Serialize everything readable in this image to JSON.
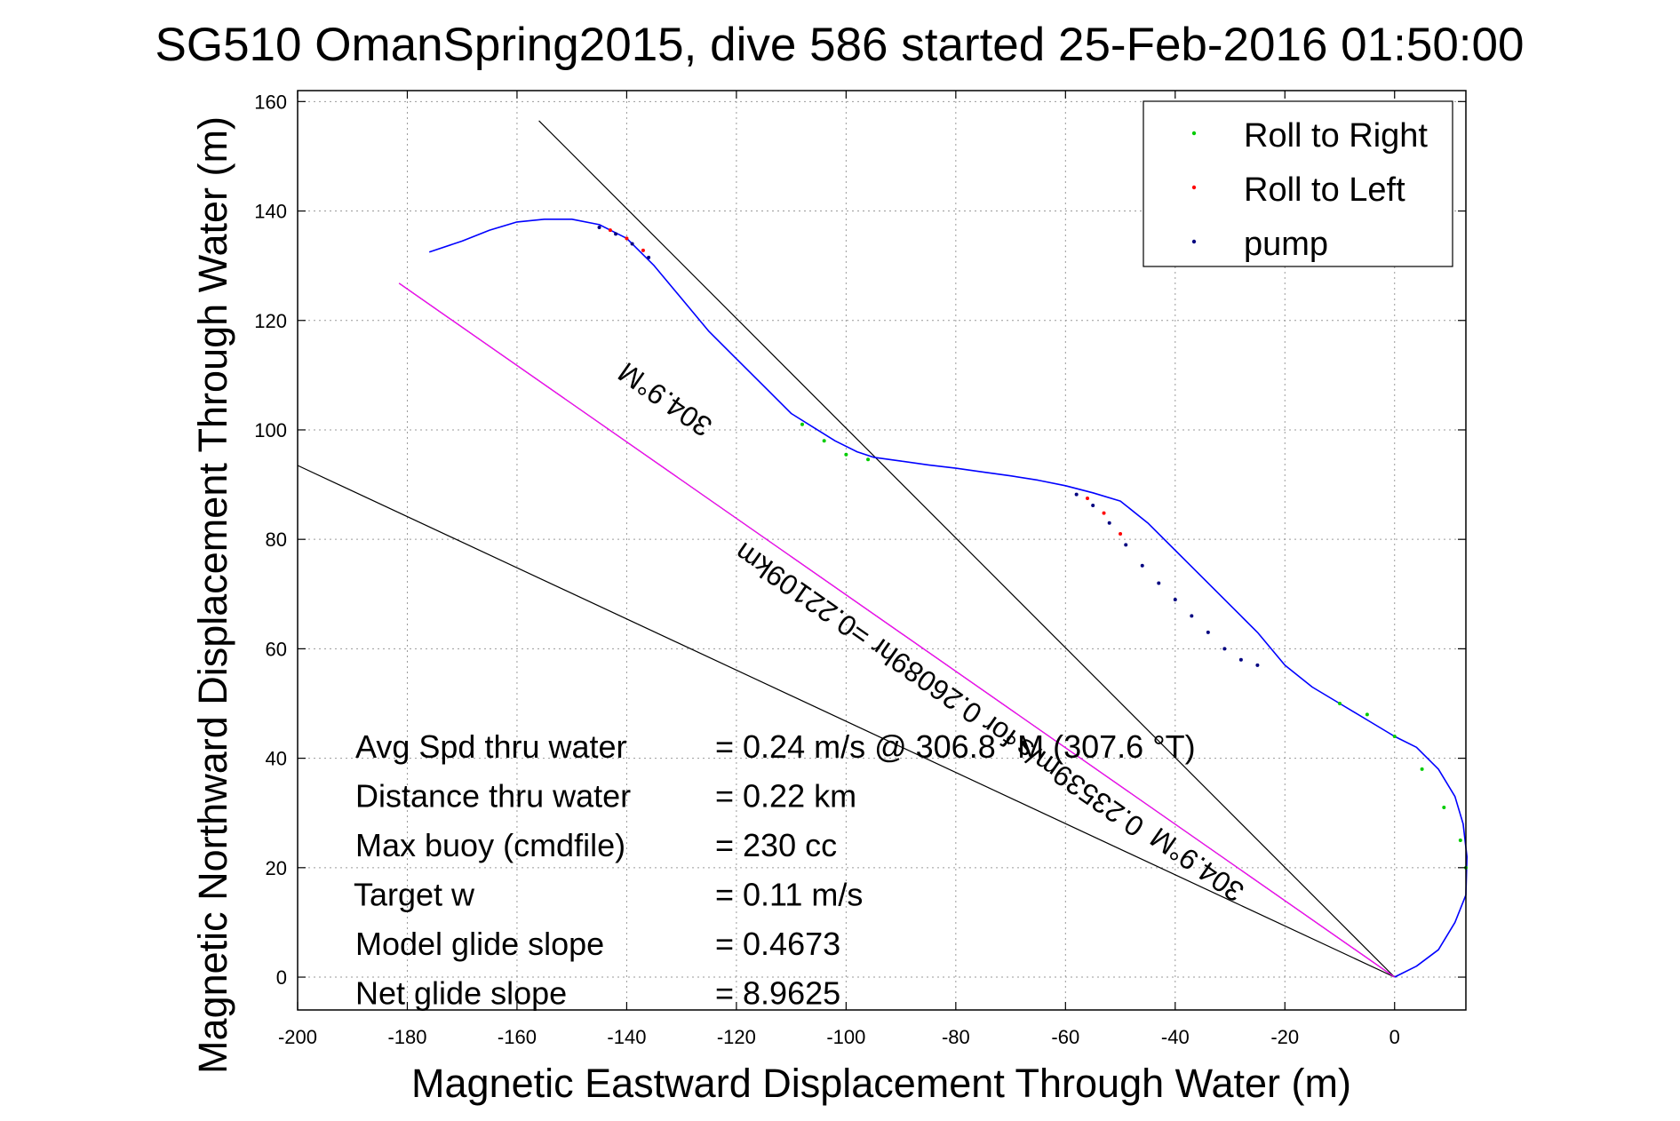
{
  "chart_data": {
    "type": "line",
    "title": "SG510 OmanSpring2015, dive 586 started 25-Feb-2016 01:50:00",
    "xlabel": "Magnetic Eastward Displacement Through Water (m)",
    "ylabel": "Magnetic Northward Displacement Through Water (m)",
    "xlim": [
      -200,
      13
    ],
    "ylim": [
      -6,
      162
    ],
    "xticks": [
      -200,
      -180,
      -160,
      -140,
      -120,
      -100,
      -80,
      -60,
      -40,
      -20,
      0
    ],
    "yticks": [
      0,
      20,
      40,
      60,
      80,
      100,
      120,
      140,
      160
    ],
    "grid": true,
    "legend": {
      "placement": "top-right",
      "entries": [
        {
          "label": "Roll to Right",
          "color": "#00cc00"
        },
        {
          "label": "Roll to Left",
          "color": "#ff0000"
        },
        {
          "label": "pump",
          "color": "#000080"
        }
      ]
    },
    "series": [
      {
        "role": "track",
        "color": "#0000ff",
        "x": [
          0,
          4,
          8,
          11,
          13,
          13.2,
          12.5,
          11,
          8,
          4,
          0,
          -5,
          -10,
          -15,
          -20,
          -25,
          -30,
          -35,
          -40,
          -45,
          -50,
          -55,
          -60,
          -65,
          -70,
          -75,
          -80,
          -85,
          -90,
          -95,
          -98,
          -102,
          -106,
          -110,
          -115,
          -120,
          -125,
          -130,
          -135,
          -140,
          -145,
          -150,
          -155,
          -160,
          -165,
          -170,
          -176
        ],
        "y": [
          0,
          2,
          5,
          10,
          15,
          22,
          28,
          33,
          38,
          42,
          44,
          47,
          50,
          53,
          57,
          63,
          68,
          73,
          78,
          83,
          87,
          88.5,
          89.8,
          90.8,
          91.6,
          92.3,
          93,
          93.6,
          94.3,
          95,
          96,
          98,
          100.5,
          103,
          108,
          113,
          118,
          124,
          130,
          135,
          137.5,
          138.5,
          138.5,
          138,
          136.5,
          134.5,
          132.5
        ]
      },
      {
        "role": "roll-right",
        "color": "#00cc00",
        "x": [
          -108,
          -104,
          -100,
          -96,
          -10,
          -5,
          0,
          5,
          9,
          12,
          13
        ],
        "y": [
          101,
          98,
          95.5,
          94.6,
          50,
          48,
          44,
          38,
          31,
          25,
          20
        ]
      },
      {
        "role": "roll-left",
        "color": "#ff0000",
        "x": [
          -143,
          -140,
          -137,
          -56,
          -53,
          -50
        ],
        "y": [
          136.5,
          135,
          132.8,
          87.5,
          84.8,
          81
        ]
      },
      {
        "role": "pump",
        "color": "#000080",
        "x": [
          -145,
          -142,
          -139,
          -136,
          -58,
          -55,
          -52,
          -49,
          -46,
          -43,
          -40,
          -37,
          -34,
          -31,
          -28,
          -25
        ],
        "y": [
          137,
          135.8,
          134,
          131.5,
          88.2,
          86.2,
          83,
          79,
          75.2,
          72,
          69,
          66,
          63,
          60,
          58,
          57
        ]
      },
      {
        "role": "reference-line",
        "color": "#000000",
        "x": [
          0,
          -156
        ],
        "y": [
          0,
          156.5
        ]
      },
      {
        "role": "reference-line",
        "color": "#000000",
        "x": [
          0,
          -200
        ],
        "y": [
          0,
          93.5
        ]
      },
      {
        "role": "net-heading-line",
        "color": "#000000",
        "x": [
          0,
          -181.5
        ],
        "y": [
          0,
          126.8
        ]
      },
      {
        "role": "net-heading-line",
        "color": "#ff00ff",
        "x": [
          0,
          -181.5
        ],
        "y": [
          0,
          126.8
        ]
      }
    ],
    "annotations": [
      {
        "text": "304.9°M",
        "x": -132,
        "y": 107,
        "rotate": 214.9
      },
      {
        "text": "0.23539m/s for 0.26089hr =0.22109km",
        "x": -82,
        "y": 54,
        "rotate": 214.9
      },
      {
        "text": "304.9°M",
        "x": -35,
        "y": 22,
        "rotate": 214.9
      }
    ],
    "stats": [
      {
        "label": "Avg Spd thru water",
        "value": "=  0.24 m/s @ 306.8 °M (307.6 °T)"
      },
      {
        "label": "Distance thru water",
        "value": "=  0.22 km"
      },
      {
        "label": "Max buoy (cmdfile)",
        "value": "= 230 cc"
      },
      {
        "label": "Target w",
        "value": "= 0.11 m/s"
      },
      {
        "label": "Model glide slope",
        "value": "= 0.4673"
      },
      {
        "label": "Net glide slope",
        "value": "= 8.9625"
      }
    ]
  }
}
